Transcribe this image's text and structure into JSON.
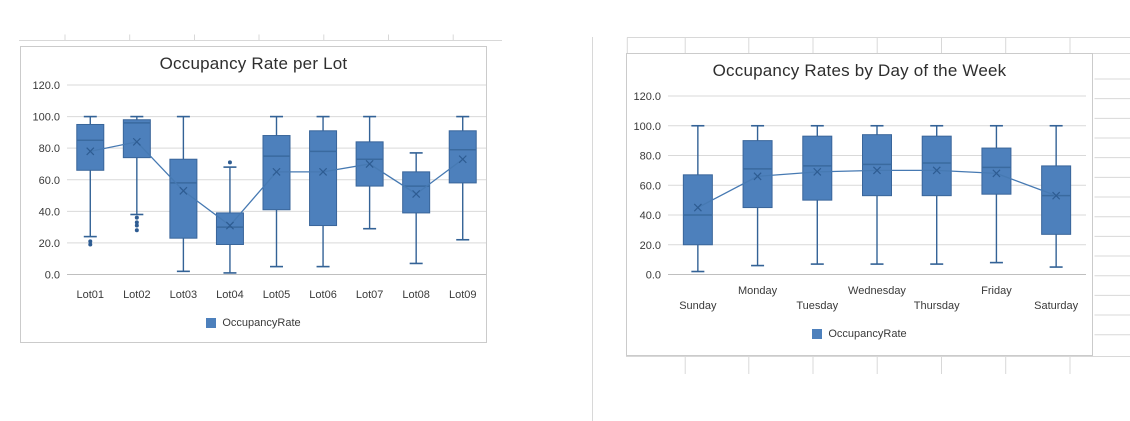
{
  "colors": {
    "box_fill": "#4D80BC",
    "box_border": "#39659A",
    "whisker": "#336296",
    "median": "#3A6A9F",
    "mean_line": "#4679B2",
    "mean_marker": "#2E5C92",
    "outlier": "#2E5C92",
    "gridline": "#D9D9D9",
    "axis_line": "#BFBFBF",
    "chart_border": "#CBCBCB",
    "sheet_line": "#D8D8D8",
    "text": "#3A3A3A"
  },
  "chart_data": [
    {
      "type": "boxplot",
      "title": "Occupancy Rate per Lot",
      "legend": "OccupancyRate",
      "grid": true,
      "legend_position": "bottom",
      "ylim": [
        0,
        120
      ],
      "ytick_step": 20,
      "label_rows": 1,
      "categories": [
        "Lot01",
        "Lot02",
        "Lot03",
        "Lot04",
        "Lot05",
        "Lot06",
        "Lot07",
        "Lot08",
        "Lot09"
      ],
      "series": [
        {
          "name": "OccupancyRate",
          "show_mean_line": true,
          "boxes": [
            {
              "category": "Lot01",
              "min": 24,
              "q1": 66,
              "median": 85,
              "q3": 95,
              "max": 100,
              "mean": 78,
              "outliers": [
                21,
                19
              ]
            },
            {
              "category": "Lot02",
              "min": 38,
              "q1": 74,
              "median": 96,
              "q3": 98,
              "max": 100,
              "mean": 84,
              "outliers": [
                36,
                33,
                31,
                28
              ]
            },
            {
              "category": "Lot03",
              "min": 2,
              "q1": 23,
              "median": 58,
              "q3": 73,
              "max": 100,
              "mean": 53,
              "outliers": []
            },
            {
              "category": "Lot04",
              "min": 1,
              "q1": 19,
              "median": 30,
              "q3": 39,
              "max": 68,
              "mean": 31,
              "outliers": [
                71
              ]
            },
            {
              "category": "Lot05",
              "min": 5,
              "q1": 41,
              "median": 75,
              "q3": 88,
              "max": 100,
              "mean": 65,
              "outliers": []
            },
            {
              "category": "Lot06",
              "min": 5,
              "q1": 31,
              "median": 78,
              "q3": 91,
              "max": 100,
              "mean": 65,
              "outliers": []
            },
            {
              "category": "Lot07",
              "min": 29,
              "q1": 56,
              "median": 73,
              "q3": 84,
              "max": 100,
              "mean": 70,
              "outliers": []
            },
            {
              "category": "Lot08",
              "min": 7,
              "q1": 39,
              "median": 56,
              "q3": 65,
              "max": 77,
              "mean": 51,
              "outliers": []
            },
            {
              "category": "Lot09",
              "min": 22,
              "q1": 58,
              "median": 79,
              "q3": 91,
              "max": 100,
              "mean": 73,
              "outliers": []
            }
          ]
        }
      ]
    },
    {
      "type": "boxplot",
      "title": "Occupancy Rates by Day of the Week",
      "legend": "OccupancyRate",
      "grid": true,
      "legend_position": "bottom",
      "ylim": [
        0,
        120
      ],
      "ytick_step": 20,
      "label_rows": 2,
      "categories": [
        "Sunday",
        "Monday",
        "Tuesday",
        "Wednesday",
        "Thursday",
        "Friday",
        "Saturday"
      ],
      "series": [
        {
          "name": "OccupancyRate",
          "show_mean_line": true,
          "boxes": [
            {
              "category": "Sunday",
              "min": 2,
              "q1": 20,
              "median": 40,
              "q3": 67,
              "max": 100,
              "mean": 45,
              "outliers": []
            },
            {
              "category": "Monday",
              "min": 6,
              "q1": 45,
              "median": 71,
              "q3": 90,
              "max": 100,
              "mean": 66,
              "outliers": []
            },
            {
              "category": "Tuesday",
              "min": 7,
              "q1": 50,
              "median": 73,
              "q3": 93,
              "max": 100,
              "mean": 69,
              "outliers": []
            },
            {
              "category": "Wednesday",
              "min": 7,
              "q1": 53,
              "median": 74,
              "q3": 94,
              "max": 100,
              "mean": 70,
              "outliers": []
            },
            {
              "category": "Thursday",
              "min": 7,
              "q1": 53,
              "median": 75,
              "q3": 93,
              "max": 100,
              "mean": 70,
              "outliers": []
            },
            {
              "category": "Friday",
              "min": 8,
              "q1": 54,
              "median": 72,
              "q3": 85,
              "max": 100,
              "mean": 68,
              "outliers": []
            },
            {
              "category": "Saturday",
              "min": 5,
              "q1": 27,
              "median": 53,
              "q3": 73,
              "max": 100,
              "mean": 53,
              "outliers": []
            }
          ]
        }
      ]
    }
  ]
}
